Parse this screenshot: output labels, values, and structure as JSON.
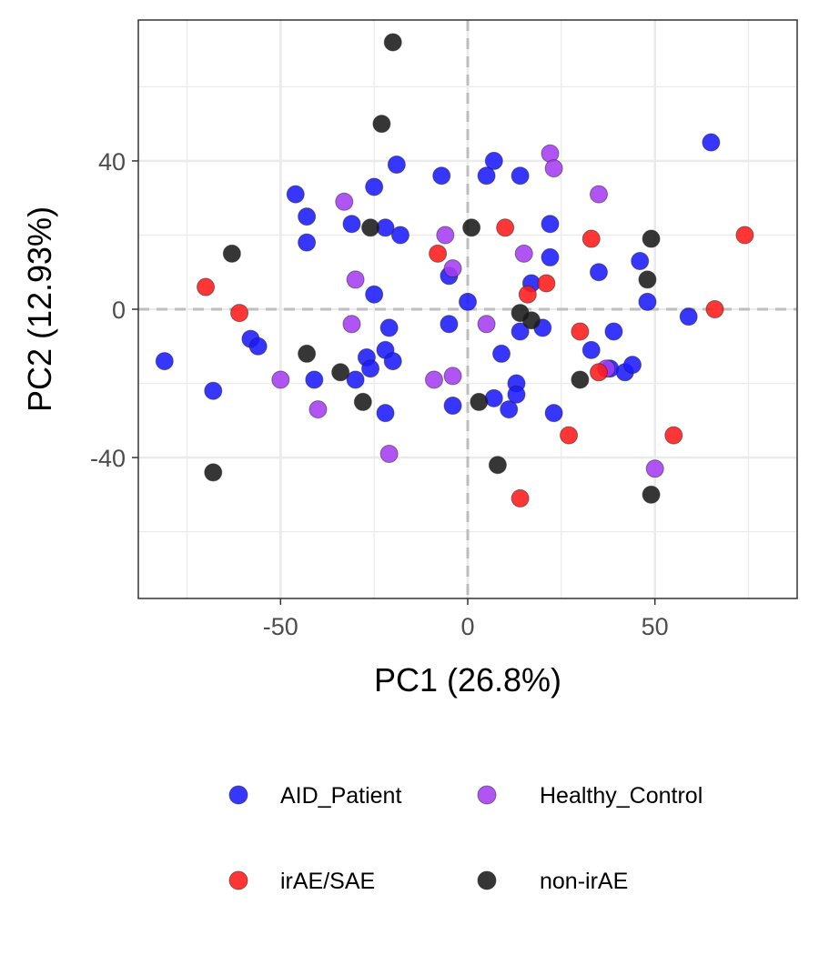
{
  "chart_data": {
    "type": "scatter",
    "title": "",
    "xlabel": "PC1 (26.8%)",
    "ylabel": "PC2 (12.93%)",
    "xlim": [
      -88,
      88
    ],
    "ylim": [
      -78,
      78
    ],
    "x_ticks": [
      -50,
      0,
      50
    ],
    "x_tick_labels": [
      "-50",
      "0",
      "50"
    ],
    "y_ticks": [
      -40,
      0,
      40
    ],
    "y_tick_labels": [
      "-40",
      "0",
      "40"
    ],
    "grid": true,
    "reference_lines": {
      "x": 0,
      "y": 0,
      "style": "dashed"
    },
    "legend_position": "bottom",
    "series": [
      {
        "name": "AID_Patient",
        "color": "#1a1aff",
        "points": [
          [
            65,
            45
          ],
          [
            -46,
            31
          ],
          [
            -43,
            25
          ],
          [
            -43,
            18
          ],
          [
            -31,
            23
          ],
          [
            -25,
            33
          ],
          [
            -22,
            22
          ],
          [
            -19,
            39
          ],
          [
            -18,
            20
          ],
          [
            -7,
            36
          ],
          [
            7,
            40
          ],
          [
            5,
            36
          ],
          [
            14,
            36
          ],
          [
            22,
            23
          ],
          [
            22,
            14
          ],
          [
            17,
            7
          ],
          [
            35,
            10
          ],
          [
            46,
            13
          ],
          [
            -25,
            4
          ],
          [
            -5,
            9
          ],
          [
            0,
            2
          ],
          [
            48,
            2
          ],
          [
            59,
            -2
          ],
          [
            -58,
            -8
          ],
          [
            -56,
            -10
          ],
          [
            -81,
            -14
          ],
          [
            -68,
            -22
          ],
          [
            -41,
            -19
          ],
          [
            -30,
            -19
          ],
          [
            -27,
            -13
          ],
          [
            -26,
            -16
          ],
          [
            -22,
            -11
          ],
          [
            -21,
            -5
          ],
          [
            -20,
            -14
          ],
          [
            -22,
            -28
          ],
          [
            -5,
            -4
          ],
          [
            -4,
            -26
          ],
          [
            7,
            -24
          ],
          [
            9,
            -12
          ],
          [
            11,
            -27
          ],
          [
            13,
            -20
          ],
          [
            13,
            -23
          ],
          [
            14,
            -6
          ],
          [
            20,
            -5
          ],
          [
            23,
            -28
          ],
          [
            33,
            -11
          ],
          [
            38,
            -16
          ],
          [
            39,
            -6
          ],
          [
            42,
            -17
          ],
          [
            44,
            -15
          ]
        ]
      },
      {
        "name": "Healthy_Control",
        "color": "#a63cf2",
        "points": [
          [
            22,
            42
          ],
          [
            23,
            38
          ],
          [
            35,
            31
          ],
          [
            -33,
            29
          ],
          [
            -6,
            20
          ],
          [
            -4,
            11
          ],
          [
            15,
            15
          ],
          [
            -30,
            8
          ],
          [
            -31,
            -4
          ],
          [
            5,
            -4
          ],
          [
            -50,
            -19
          ],
          [
            -40,
            -27
          ],
          [
            -9,
            -19
          ],
          [
            -4,
            -18
          ],
          [
            -21,
            -39
          ],
          [
            37,
            -16
          ],
          [
            50,
            -43
          ]
        ]
      },
      {
        "name": "irAE/SAE",
        "color": "#ff1a1a",
        "points": [
          [
            10,
            22
          ],
          [
            -8,
            15
          ],
          [
            33,
            19
          ],
          [
            74,
            20
          ],
          [
            -70,
            6
          ],
          [
            -61,
            -1
          ],
          [
            21,
            7
          ],
          [
            16,
            4
          ],
          [
            66,
            0
          ],
          [
            30,
            -6
          ],
          [
            35,
            -17
          ],
          [
            27,
            -34
          ],
          [
            55,
            -34
          ],
          [
            14,
            -51
          ]
        ]
      },
      {
        "name": "non-irAE",
        "color": "#1a1a1a",
        "points": [
          [
            -20,
            72
          ],
          [
            -23,
            50
          ],
          [
            -63,
            15
          ],
          [
            -26,
            22
          ],
          [
            1,
            22
          ],
          [
            49,
            19
          ],
          [
            48,
            8
          ],
          [
            14,
            -1
          ],
          [
            17,
            -3
          ],
          [
            -43,
            -12
          ],
          [
            -34,
            -17
          ],
          [
            -28,
            -25
          ],
          [
            3,
            -25
          ],
          [
            30,
            -19
          ],
          [
            -68,
            -44
          ],
          [
            8,
            -42
          ],
          [
            49,
            -50
          ]
        ]
      }
    ]
  },
  "legend": {
    "items": [
      {
        "label": "AID_Patient",
        "color": "#1a1aff"
      },
      {
        "label": "Healthy_Control",
        "color": "#a63cf2"
      },
      {
        "label": "irAE/SAE",
        "color": "#ff1a1a"
      },
      {
        "label": "non-irAE",
        "color": "#1a1a1a"
      }
    ]
  }
}
